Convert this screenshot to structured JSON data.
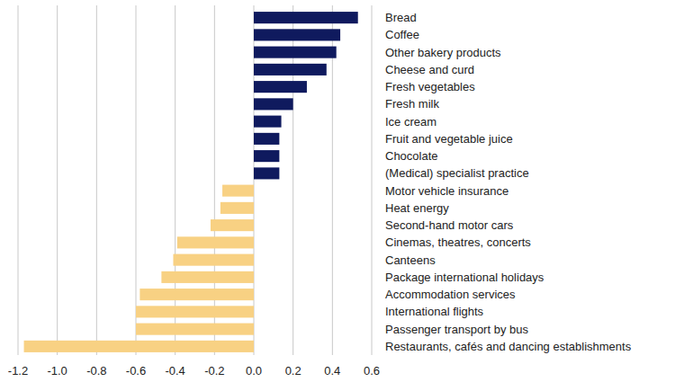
{
  "chart_data": {
    "type": "bar",
    "orientation": "horizontal",
    "grid": true,
    "categories": [
      "Bread",
      "Coffee",
      "Other bakery products",
      "Cheese and curd",
      "Fresh vegetables",
      "Fresh milk",
      "Ice cream",
      "Fruit and vegetable juice",
      "Chocolate",
      "(Medical) specialist practice",
      "Motor vehicle insurance",
      "Heat energy",
      "Second-hand motor cars",
      "Cinemas, theatres, concerts",
      "Canteens",
      "Package international holidays",
      "Accommodation services",
      "International flights",
      "Passenger transport by bus",
      "Restaurants, cafés and dancing establishments"
    ],
    "values": [
      0.53,
      0.44,
      0.42,
      0.37,
      0.27,
      0.2,
      0.14,
      0.13,
      0.13,
      0.13,
      -0.16,
      -0.17,
      -0.22,
      -0.39,
      -0.41,
      -0.47,
      -0.58,
      -0.6,
      -0.6,
      -1.17
    ],
    "colors": [
      "#0f1a5e",
      "#0f1a5e",
      "#0f1a5e",
      "#0f1a5e",
      "#0f1a5e",
      "#0f1a5e",
      "#0f1a5e",
      "#0f1a5e",
      "#0f1a5e",
      "#0f1a5e",
      "#f8d183",
      "#f8d183",
      "#f8d183",
      "#f8d183",
      "#f8d183",
      "#f8d183",
      "#f8d183",
      "#f8d183",
      "#f8d183",
      "#f8d183"
    ],
    "xlim": [
      -1.2,
      0.6
    ],
    "xticks": [
      {
        "value": -1.2,
        "label": "-1.2"
      },
      {
        "value": -1,
        "label": "-1.0"
      },
      -0.8,
      -0.6,
      -0.4,
      -0.2,
      {
        "value": 0,
        "label": "0.0"
      },
      0.2,
      0.4,
      0.6
    ]
  }
}
